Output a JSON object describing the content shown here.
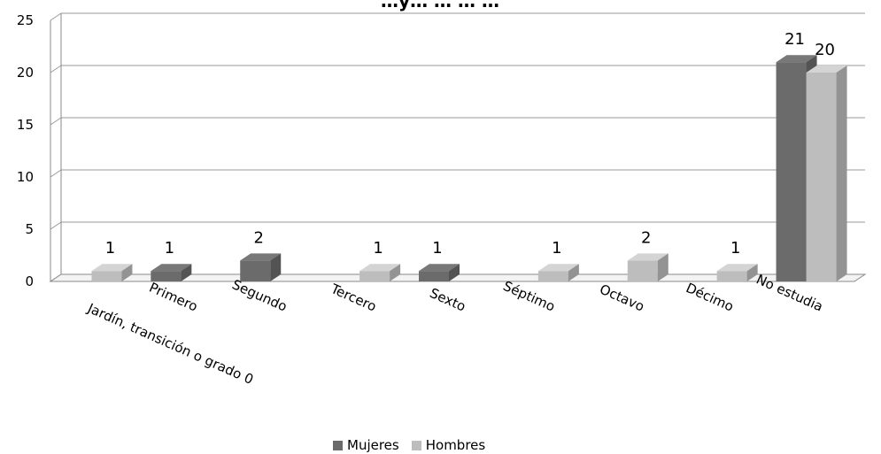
{
  "chart_data": {
    "type": "bar",
    "title": "…y… … … …",
    "categories": [
      "Jardín, transición o grado 0",
      "Primero",
      "Segundo",
      "Tercero",
      "Sexto",
      "Séptimo",
      "Octavo",
      "Décimo",
      "No estudia"
    ],
    "series": [
      {
        "name": "Mujeres",
        "color": "#6b6b6b",
        "values": [
          0,
          1,
          2,
          0,
          1,
          0,
          0,
          0,
          21
        ]
      },
      {
        "name": "Hombres",
        "color": "#bdbdbd",
        "values": [
          1,
          0,
          0,
          1,
          0,
          1,
          2,
          1,
          20
        ]
      }
    ],
    "yticks": [
      "0",
      "5",
      "10",
      "15",
      "20",
      "25"
    ],
    "ylim": [
      0,
      25
    ],
    "grid": true,
    "legend_position": "bottom"
  }
}
